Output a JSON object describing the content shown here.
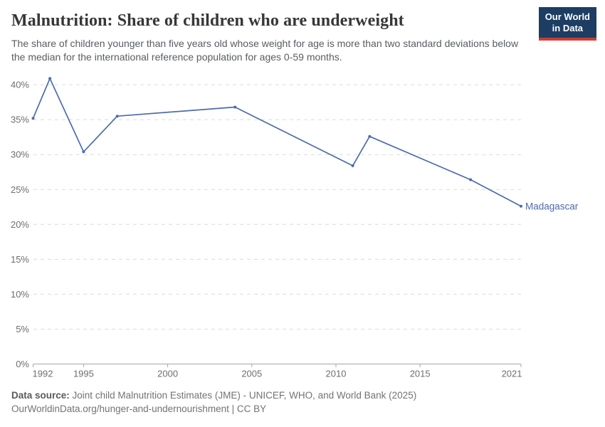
{
  "header": {
    "title": "Malnutrition: Share of children who are underweight",
    "subtitle": "The share of children younger than five years old whose weight for age is more than two standard deviations below the median for the international reference population for ages 0-59 months.",
    "logo": {
      "line1": "Our World",
      "line2": "in Data",
      "bg_color": "#1d3d63",
      "stripe_color": "#cf3d34"
    }
  },
  "footer": {
    "source_label": "Data source:",
    "source_text": "Joint child Malnutrition Estimates (JME) - UNICEF, WHO, and World Bank (2025)",
    "note_text": "OurWorldinData.org/hunger-and-undernourishment | CC BY"
  },
  "chart_data": {
    "type": "line",
    "title": "Malnutrition: Share of children who are underweight",
    "series": [
      {
        "name": "Madagascar",
        "color": "#4c6bac",
        "x": [
          1992,
          1993,
          1995,
          1997,
          2004,
          2011,
          2012,
          2018,
          2021
        ],
        "y": [
          35.2,
          40.9,
          30.4,
          35.5,
          36.8,
          28.4,
          32.6,
          26.4,
          22.6
        ]
      }
    ],
    "xlabel": "",
    "ylabel": "",
    "xlim": [
      1992,
      2021
    ],
    "ylim": [
      0,
      41
    ],
    "x_ticks": [
      1992,
      1995,
      2000,
      2005,
      2010,
      2015,
      2021
    ],
    "y_ticks": [
      0,
      5,
      10,
      15,
      20,
      25,
      30,
      35,
      40
    ],
    "y_tick_suffix": "%",
    "grid": "horizontal dashed",
    "legend_position": "end-of-line label"
  }
}
